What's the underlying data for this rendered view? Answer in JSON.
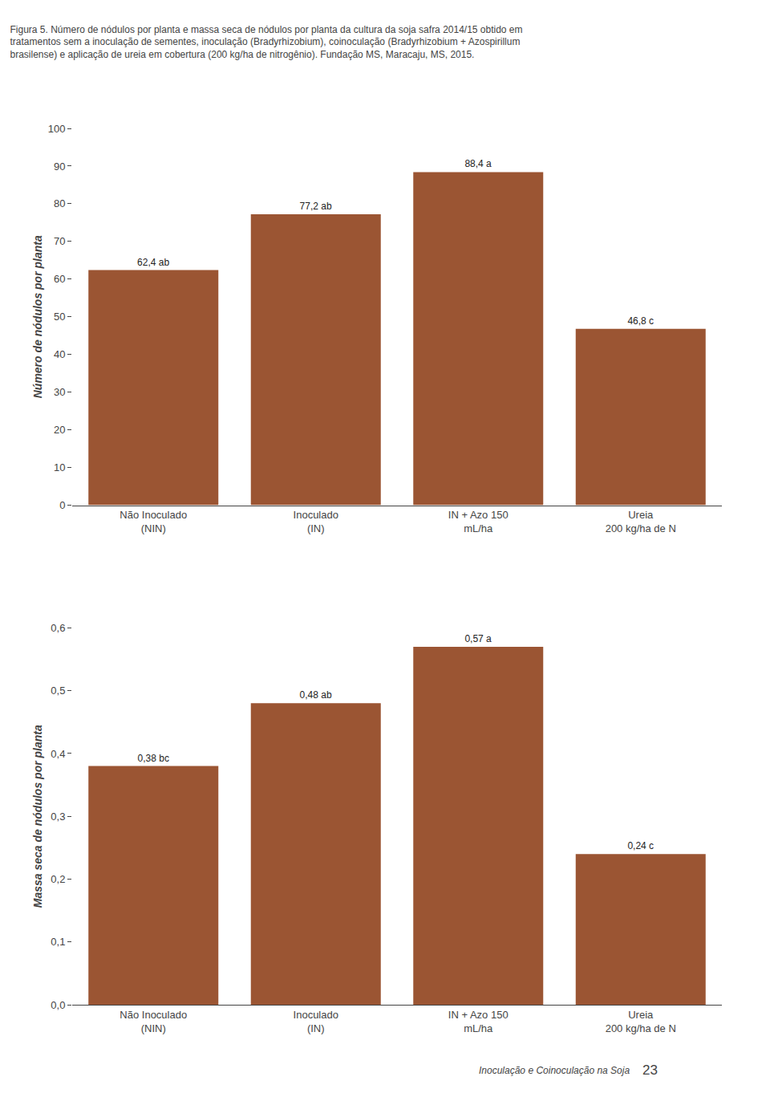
{
  "title": "Figura 5. Número de nódulos por planta e massa seca de nódulos por planta da cultura da soja safra 2014/15 obtido em\ntratamentos sem a inoculação de sementes, inoculação (Bradyrhizobium), coinoculação (Bradyrhizobium + Azospirillum\nbrasilense) e aplicação de ureia em cobertura (200 kg/ha de nitrogênio). Fundação MS, Maracaju, MS, 2015.",
  "annotations": [
    "Inoculação e Coinoculação na Soja",
    "23"
  ],
  "chart_data": [
    {
      "type": "bar",
      "categories": [
        "Não Inoculado\n(NIN)",
        "Inoculado\n(IN)",
        "IN + Azo 150\nmL/ha",
        "Ureia\n200 kg/ha de N"
      ],
      "values": [
        62.4,
        77.2,
        88.4,
        46.8
      ],
      "value_labels": [
        "62,4 ab",
        "77,2 ab",
        "88,4 a",
        "46,8 c"
      ],
      "data_labels": true,
      "y_label": "Número de nódulos por planta",
      "color": "#9B5533",
      "ylim": [
        0,
        100
      ],
      "yticks": [
        0,
        10,
        20,
        30,
        40,
        50,
        60,
        70,
        80,
        90,
        100
      ],
      "grid": false
    },
    {
      "type": "bar",
      "categories": [
        "Não Inoculado\n(NIN)",
        "Inoculado\n(IN)",
        "IN + Azo 150\nmL/ha",
        "Ureia\n200 kg/ha de N"
      ],
      "values": [
        0.38,
        0.48,
        0.57,
        0.24
      ],
      "value_labels": [
        "0,38 bc",
        "0,48 ab",
        "0,57 a",
        "0,24 c"
      ],
      "data_labels": true,
      "y_label": "Massa seca de nódulos por planta",
      "color": "#9B5533",
      "ylim": [
        0,
        0.6
      ],
      "yticks": [
        {
          "value": 0.0,
          "label": "0,0"
        },
        {
          "value": 0.1,
          "label": "0,1"
        },
        {
          "value": 0.2,
          "label": "0,2"
        },
        {
          "value": 0.3,
          "label": "0,3"
        },
        {
          "value": 0.4,
          "label": "0,4"
        },
        {
          "value": 0.5,
          "label": "0,5"
        },
        {
          "value": 0.6,
          "label": "0,6"
        }
      ],
      "grid": false
    }
  ]
}
